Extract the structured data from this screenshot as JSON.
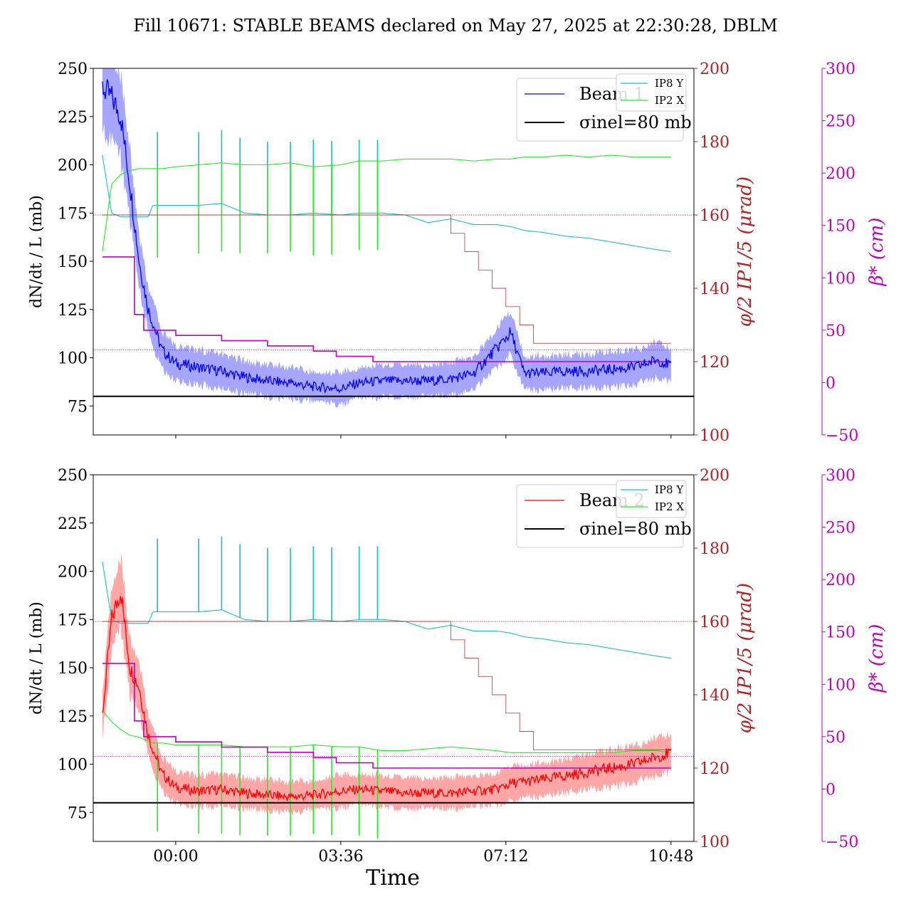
{
  "figure": {
    "title": "Fill 10671: STABLE BEAMS declared on May 27, 2025 at 22:30:28, DBLM",
    "xlabel": "Time"
  },
  "legend_labels": {
    "ref_line": "σinel=80 mb",
    "ip8": "IP8 Y",
    "ip2": "IP2 X"
  },
  "colors": {
    "beam1": "#0000ff",
    "beam2": "#ff0000",
    "ip8": "#17becf",
    "ip2": "#22ee22",
    "crossing": "#b22222",
    "beta": "#c000c0",
    "ref": "#000000"
  },
  "chart_data": [
    {
      "type": "line",
      "panel": "top",
      "beam_label": "Beam 1",
      "ylabel": "dN/dt / L (mb)",
      "y2label": "φ/2 IP1/5 (μrad)",
      "y3label": "β* (cm)",
      "ylim": [
        60,
        250
      ],
      "y2lim": [
        100,
        200
      ],
      "y3lim": [
        -50,
        300
      ],
      "yticks": [
        "75",
        "100",
        "125",
        "150",
        "175",
        "200",
        "225",
        "250"
      ],
      "y2ticks": [
        "100",
        "120",
        "140",
        "160",
        "180",
        "200"
      ],
      "y3ticks": [
        "−50",
        "0",
        "50",
        "100",
        "150",
        "200",
        "250",
        "300"
      ],
      "x_hours": [
        -1.6,
        -1.4,
        -1.2,
        -1.0,
        -0.8,
        -0.6,
        -0.5,
        -0.3,
        0,
        0.5,
        1,
        1.5,
        2,
        2.5,
        3,
        3.6,
        4,
        4.5,
        5,
        5.5,
        6,
        6.5,
        7,
        7.3,
        7.6,
        8,
        8.5,
        9,
        9.5,
        10,
        10.5,
        10.8
      ],
      "rate_mb": [
        240,
        235,
        225,
        190,
        150,
        125,
        118,
        104,
        97,
        95,
        93,
        90,
        88,
        87,
        85,
        84,
        87,
        88,
        88,
        88,
        89,
        92,
        105,
        113,
        92,
        92,
        93,
        93,
        94,
        95,
        99,
        96
      ],
      "reference_mb": 80,
      "reference_dotted_mb": [
        174,
        104
      ],
      "ip8_y_mb": [
        205,
        175,
        173,
        173,
        173,
        173,
        179,
        179,
        179,
        179,
        180,
        175,
        174,
        174,
        175,
        174,
        175,
        175,
        174,
        170,
        172,
        169,
        169,
        168,
        166,
        165,
        163,
        162,
        160,
        158,
        156,
        155
      ],
      "ip2_x_mb": [
        155,
        190,
        195,
        197,
        198,
        198,
        198,
        198,
        199,
        200,
        201,
        200,
        200,
        201,
        199,
        200,
        202,
        202,
        203,
        203,
        203,
        202,
        203,
        203,
        204,
        204,
        205,
        204,
        205,
        204,
        204,
        204
      ],
      "ip_spike_hours": [
        -0.4,
        0.5,
        1.0,
        1.4,
        2.0,
        2.5,
        3.0,
        3.4,
        4.0,
        4.4
      ],
      "crossing_x_hours": [
        -1.6,
        5.2,
        5.6,
        6.0,
        6.3,
        6.6,
        6.9,
        7.2,
        7.5,
        7.8,
        10.8
      ],
      "crossing_urad": [
        160,
        160,
        160,
        155,
        150,
        145,
        140,
        135,
        130,
        125,
        125
      ],
      "beta_x_hours": [
        -1.6,
        -1.1,
        -0.9,
        -0.7,
        0,
        1,
        2,
        3,
        3.5,
        4.3,
        10.8
      ],
      "beta_cm": [
        120,
        120,
        65,
        50,
        45,
        40,
        35,
        30,
        25,
        20,
        20
      ]
    },
    {
      "type": "line",
      "panel": "bottom",
      "beam_label": "Beam 2",
      "ylabel": "dN/dt / L (mb)",
      "y2label": "φ/2 IP1/5 (μrad)",
      "y3label": "β* (cm)",
      "xticks": [
        "00:00",
        "03:36",
        "07:12",
        "10:48"
      ],
      "xtick_hours": [
        0,
        3.6,
        7.2,
        10.8
      ],
      "ylim": [
        60,
        250
      ],
      "y2lim": [
        100,
        200
      ],
      "y3lim": [
        -50,
        300
      ],
      "yticks": [
        "75",
        "100",
        "125",
        "150",
        "175",
        "200",
        "225",
        "250"
      ],
      "y2ticks": [
        "100",
        "120",
        "140",
        "160",
        "180",
        "200"
      ],
      "y3ticks": [
        "−50",
        "0",
        "50",
        "100",
        "150",
        "200",
        "250",
        "300"
      ],
      "x_hours": [
        -1.6,
        -1.4,
        -1.2,
        -1.0,
        -0.8,
        -0.6,
        -0.5,
        -0.3,
        0,
        0.5,
        1,
        1.5,
        2,
        2.5,
        3,
        3.6,
        4,
        4.5,
        5,
        5.5,
        6,
        6.5,
        7,
        7.3,
        7.6,
        8,
        8.5,
        9,
        9.5,
        10,
        10.5,
        10.8
      ],
      "rate_mb": [
        125,
        175,
        190,
        150,
        140,
        115,
        108,
        95,
        88,
        86,
        87,
        85,
        84,
        83,
        84,
        86,
        87,
        86,
        85,
        85,
        85,
        86,
        87,
        90,
        91,
        92,
        94,
        96,
        98,
        100,
        104,
        106
      ],
      "reference_mb": 80,
      "reference_dotted_mb": [
        174,
        104
      ],
      "ip8_y_mb": [
        205,
        175,
        173,
        173,
        173,
        173,
        179,
        179,
        179,
        179,
        180,
        175,
        174,
        174,
        175,
        174,
        175,
        175,
        174,
        170,
        172,
        169,
        169,
        168,
        166,
        165,
        163,
        162,
        160,
        158,
        156,
        155
      ],
      "ip2_x_mb": [
        128,
        122,
        118,
        115,
        114,
        112,
        111,
        111,
        110,
        110,
        110,
        109,
        109,
        109,
        110,
        109,
        109,
        107,
        107,
        108,
        109,
        108,
        107,
        106,
        106,
        106,
        106,
        106,
        106,
        107,
        107,
        106
      ],
      "ip_spike_hours": [
        -0.4,
        0.5,
        1.0,
        1.4,
        2.0,
        2.5,
        3.0,
        3.4,
        4.0,
        4.4
      ],
      "crossing_x_hours": [
        -1.6,
        5.2,
        5.6,
        6.0,
        6.3,
        6.6,
        6.9,
        7.2,
        7.5,
        7.8,
        10.8
      ],
      "crossing_urad": [
        160,
        160,
        160,
        155,
        150,
        145,
        140,
        135,
        130,
        125,
        125
      ],
      "beta_x_hours": [
        -1.6,
        -1.1,
        -0.9,
        -0.7,
        0,
        1,
        2,
        3,
        3.5,
        4.3,
        10.8
      ],
      "beta_cm": [
        120,
        120,
        65,
        50,
        45,
        40,
        35,
        30,
        25,
        20,
        20
      ]
    }
  ]
}
